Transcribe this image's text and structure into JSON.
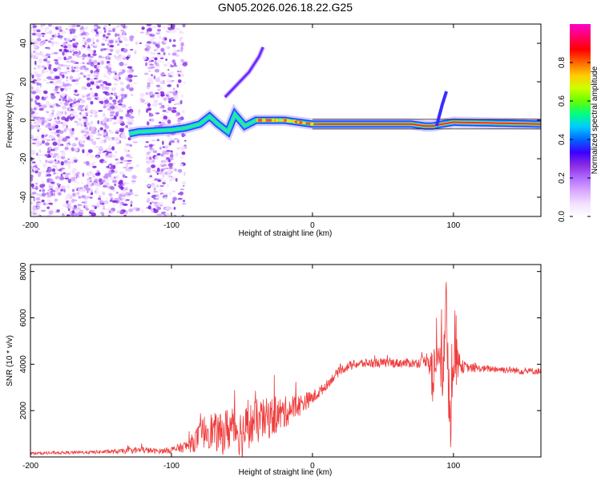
{
  "title": "GN05.2026.026.18.22.G25",
  "chart_data": [
    {
      "type": "heatmap",
      "title": "GN05.2026.026.18.22.G25",
      "xlabel": "Height of straight line (km)",
      "ylabel": "Frequency (Hz)",
      "xlim": [
        -200,
        162
      ],
      "ylim": [
        -50,
        50
      ],
      "xticks": [
        -200,
        -100,
        0,
        100
      ],
      "yticks": [
        -40,
        -20,
        0,
        20,
        40
      ],
      "colorbar": {
        "label": "Normalized spectral amplitude",
        "range": [
          0,
          1
        ],
        "ticks": [
          "0.0",
          "0.2",
          "0.4",
          "0.6",
          "0.8"
        ],
        "colormap": [
          "#ffffff",
          "#f2e0ff",
          "#d9a8ff",
          "#b06bff",
          "#8a2be2",
          "#3b00ff",
          "#0066ff",
          "#00ccff",
          "#00ff80",
          "#66ff00",
          "#ccff00",
          "#ffcc00",
          "#ff6600",
          "#ff0000",
          "#ff0066",
          "#ff00cc"
        ]
      },
      "ridge": {
        "description_points_km_hz": [
          [
            -130,
            -7
          ],
          [
            -123,
            -6
          ],
          [
            -100,
            -5
          ],
          [
            -90,
            -4
          ],
          [
            -80,
            -2
          ],
          [
            -73,
            2
          ],
          [
            -67,
            -2
          ],
          [
            -60,
            -6
          ],
          [
            -55,
            3
          ],
          [
            -48,
            -3
          ],
          [
            -40,
            0
          ],
          [
            -30,
            0
          ],
          [
            -20,
            0
          ],
          [
            -10,
            -1
          ],
          [
            0,
            -2
          ],
          [
            20,
            -2
          ],
          [
            60,
            -2
          ],
          [
            70,
            -2
          ],
          [
            80,
            -3
          ],
          [
            85,
            -3
          ],
          [
            92,
            -2
          ],
          [
            100,
            -1
          ],
          [
            162,
            -2
          ]
        ],
        "branch_points_km_hz": [
          [
            -62,
            12
          ],
          [
            -45,
            25
          ],
          [
            -38,
            33
          ],
          [
            -35,
            38
          ]
        ],
        "spike_points_km_hz": [
          [
            88,
            -3
          ],
          [
            92,
            8
          ],
          [
            95,
            15
          ]
        ]
      }
    },
    {
      "type": "line",
      "xlabel": "Height of straight line (km)",
      "ylabel": "SNR (10 * v/v)",
      "xlim": [
        -200,
        162
      ],
      "ylim": [
        0,
        8300
      ],
      "xticks": [
        -200,
        -100,
        0,
        100
      ],
      "yticks": [
        2000,
        4000,
        6000,
        8000
      ],
      "color": "#ef3b3b",
      "series": [
        {
          "name": "SNR",
          "x": [
            -200,
            -180,
            -160,
            -140,
            -120,
            -110,
            -100,
            -90,
            -85,
            -80,
            -75,
            -70,
            -65,
            -60,
            -55,
            -50,
            -45,
            -40,
            -35,
            -30,
            -25,
            -20,
            -15,
            -10,
            -5,
            0,
            5,
            10,
            15,
            20,
            25,
            30,
            40,
            50,
            60,
            70,
            75,
            80,
            82,
            84,
            86,
            88,
            90,
            92,
            94,
            96,
            98,
            100,
            102,
            104,
            106,
            110,
            120,
            130,
            140,
            150,
            162
          ],
          "y": [
            150,
            180,
            200,
            230,
            300,
            250,
            300,
            450,
            600,
            900,
            1200,
            1100,
            950,
            1200,
            1300,
            1000,
            1350,
            1500,
            1600,
            1700,
            1800,
            1900,
            2100,
            2200,
            2400,
            2550,
            2800,
            3100,
            3450,
            3750,
            3900,
            4000,
            4050,
            4050,
            4050,
            4050,
            4050,
            4150,
            4300,
            4000,
            3100,
            5000,
            4000,
            3500,
            6500,
            4000,
            2000,
            5500,
            4500,
            4000,
            3900,
            3850,
            3800,
            3800,
            3750,
            3700,
            3700
          ],
          "amplitude": [
            60,
            60,
            70,
            90,
            150,
            100,
            150,
            250,
            400,
            600,
            800,
            800,
            900,
            1000,
            1000,
            1100,
            1000,
            1000,
            900,
            900,
            800,
            700,
            600,
            500,
            400,
            300,
            250,
            200,
            200,
            200,
            200,
            200,
            200,
            200,
            200,
            200,
            200,
            250,
            400,
            1200,
            1500,
            1500,
            1200,
            1500,
            2000,
            2500,
            1800,
            2500,
            1500,
            500,
            300,
            200,
            150,
            150,
            150,
            150,
            150
          ]
        }
      ]
    }
  ]
}
